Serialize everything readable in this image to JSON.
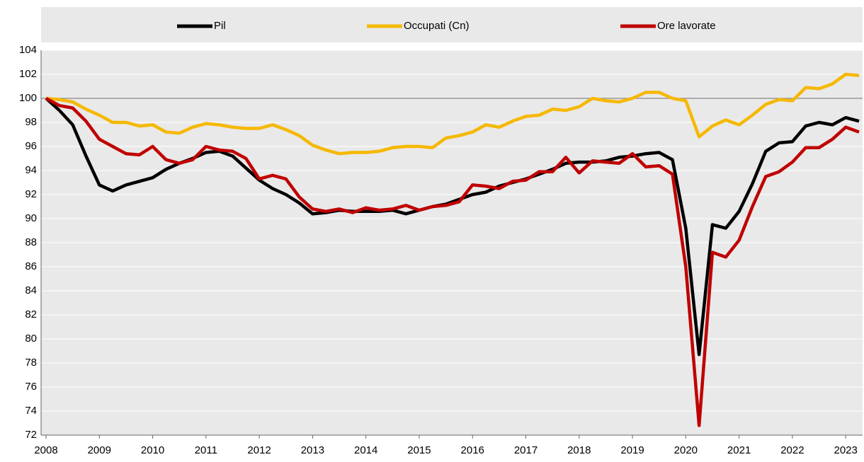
{
  "chart_data": {
    "type": "line",
    "categories": [
      "2008",
      null,
      null,
      null,
      "2009",
      null,
      null,
      null,
      "2010",
      null,
      null,
      null,
      "2011",
      null,
      null,
      null,
      "2012",
      null,
      null,
      null,
      "2013",
      null,
      null,
      null,
      "2014",
      null,
      null,
      null,
      "2015",
      null,
      null,
      null,
      "2016",
      null,
      null,
      null,
      "2017",
      null,
      null,
      null,
      "2018",
      null,
      null,
      null,
      "2019",
      null,
      null,
      null,
      "2020",
      null,
      null,
      null,
      "2021",
      null,
      null,
      null,
      "2022",
      null,
      null,
      null,
      "2023",
      null
    ],
    "series": [
      {
        "name": "Pil",
        "color": "#000000",
        "values": [
          100,
          99.0,
          97.8,
          95.2,
          92.8,
          92.3,
          92.8,
          93.1,
          93.4,
          94.1,
          94.6,
          95.0,
          95.5,
          95.6,
          95.2,
          94.2,
          93.2,
          92.5,
          92.0,
          91.3,
          90.4,
          90.5,
          90.7,
          90.6,
          90.6,
          90.6,
          90.7,
          90.4,
          90.7,
          91.0,
          91.2,
          91.6,
          92.0,
          92.2,
          92.7,
          93.0,
          93.3,
          93.7,
          94.1,
          94.6,
          94.7,
          94.7,
          94.8,
          95.1,
          95.2,
          95.4,
          95.5,
          94.9,
          89.2,
          78.7,
          89.5,
          89.2,
          90.6,
          92.9,
          95.6,
          96.3,
          96.4,
          97.7,
          98.0,
          97.8,
          98.4,
          98.1
        ]
      },
      {
        "name": "Occupati (Cn)",
        "color": "#f5b800",
        "values": [
          100,
          99.9,
          99.7,
          99.1,
          98.6,
          98.0,
          98.0,
          97.7,
          97.8,
          97.2,
          97.1,
          97.6,
          97.9,
          97.8,
          97.6,
          97.5,
          97.5,
          97.8,
          97.4,
          96.9,
          96.1,
          95.7,
          95.4,
          95.5,
          95.5,
          95.6,
          95.9,
          96.0,
          96.0,
          95.9,
          96.7,
          96.9,
          97.2,
          97.8,
          97.6,
          98.1,
          98.5,
          98.6,
          99.1,
          99.0,
          99.3,
          100.0,
          99.8,
          99.7,
          100.0,
          100.5,
          100.5,
          100.0,
          99.8,
          96.8,
          97.7,
          98.2,
          97.8,
          98.6,
          99.5,
          99.9,
          99.8,
          100.9,
          100.8,
          101.2,
          102.0,
          101.9
        ]
      },
      {
        "name": "Ore lavorate",
        "color": "#c00000",
        "values": [
          100,
          99.4,
          99.2,
          98.1,
          96.6,
          96.0,
          95.4,
          95.3,
          96.0,
          94.9,
          94.6,
          94.9,
          96.0,
          95.7,
          95.6,
          95.0,
          93.3,
          93.6,
          93.3,
          91.8,
          90.8,
          90.6,
          90.8,
          90.5,
          90.9,
          90.7,
          90.8,
          91.1,
          90.7,
          91.0,
          91.1,
          91.4,
          92.8,
          92.7,
          92.5,
          93.1,
          93.2,
          93.9,
          93.9,
          95.1,
          93.8,
          94.8,
          94.7,
          94.6,
          95.4,
          94.3,
          94.4,
          93.7,
          86.0,
          72.8,
          87.2,
          86.8,
          88.2,
          91.0,
          93.5,
          93.9,
          94.7,
          95.9,
          95.9,
          96.6,
          97.6,
          97.2
        ]
      }
    ],
    "ylim": [
      72,
      104
    ],
    "yticks": [
      72,
      74,
      76,
      78,
      80,
      82,
      84,
      86,
      88,
      90,
      92,
      94,
      96,
      98,
      100,
      102,
      104
    ],
    "grid": true,
    "baseline": 100,
    "legend": "top"
  }
}
